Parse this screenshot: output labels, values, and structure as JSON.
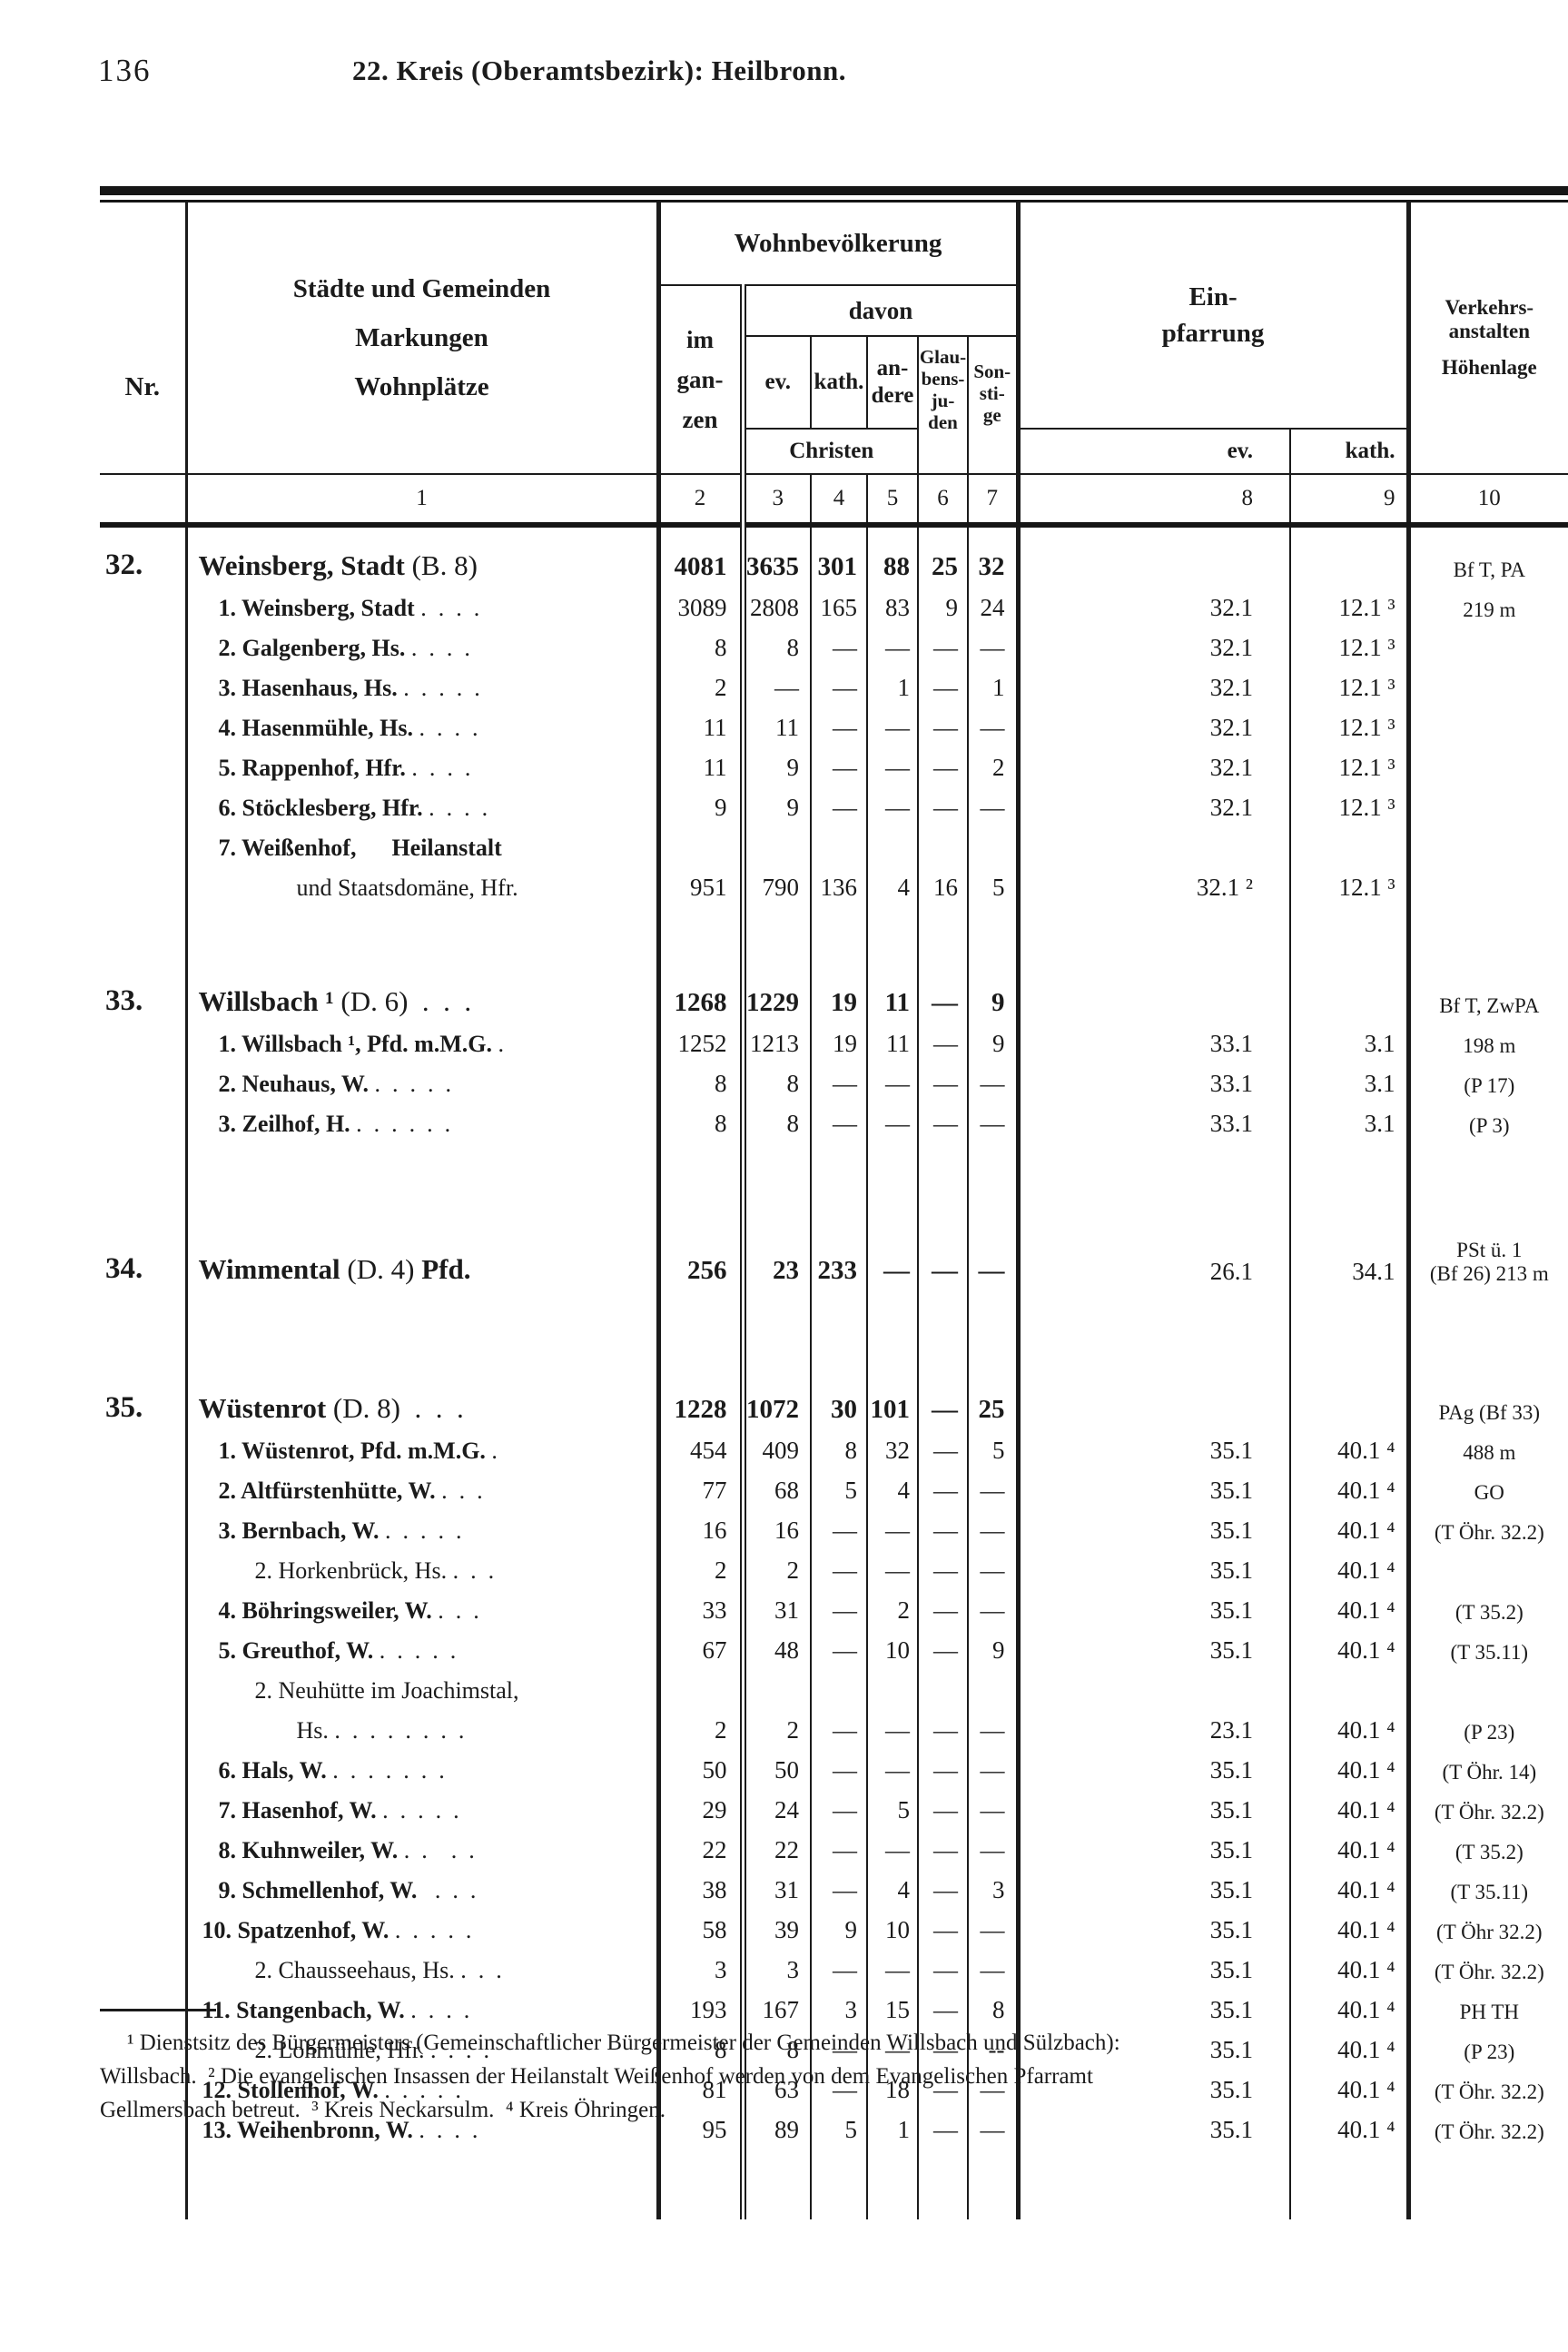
{
  "page": {
    "number": "136",
    "title": "22. Kreis (Oberamtsbezirk): Heilbronn."
  },
  "table": {
    "headers": {
      "nr": "Nr.",
      "col1": "Städte und Gemeinden\nMarkungen\nWohnplätze",
      "wohnbev": "Wohnbevölkerung",
      "davon": "davon",
      "im": "im\ngan-\nzen",
      "ev": "ev.",
      "kath": "kath.",
      "andere": "an-\ndere",
      "glaubensjuden": "Glau-\nbens-\nju-\nden",
      "sonstige": "Son-\nsti-\nge",
      "christen": "Christen",
      "einpfarrung": "Ein-\npfarrung",
      "einpf_ev": "ev.",
      "einpf_kath": "kath.",
      "verkehr1": "Verkehrs-\nanstalten",
      "verkehr2": "Höhenlage",
      "nums": [
        "",
        "1",
        "2",
        "3",
        "4",
        "5",
        "6",
        "7",
        "8",
        "9",
        "10"
      ]
    },
    "rows": [
      {
        "s": "m",
        "nr": "32.",
        "f1": "Weinsberg, Stadt",
        "a1": " (B. 8)",
        "v": [
          "4081",
          "3635",
          "301",
          "88",
          "25",
          "32"
        ],
        "pe": "",
        "pk": "",
        "vk": "Bf T, PA"
      },
      {
        "s": "s1",
        "f1": "1. Weinsberg, Stadt",
        "a1": " .  .  .  .",
        "v": [
          "3089",
          "2808",
          "165",
          "83",
          "9",
          "24"
        ],
        "pe": "32.1",
        "pk": "12.1 ³",
        "vk": "219 m"
      },
      {
        "s": "s1",
        "f1": "2. Galgenberg, Hs.",
        "a1": " .  .  .  .",
        "v": [
          "8",
          "8",
          "—",
          "—",
          "—",
          "—"
        ],
        "pe": "32.1",
        "pk": "12.1 ³",
        "vk": ""
      },
      {
        "s": "s1",
        "f1": "3. Hasenhaus, Hs.",
        "a1": " .  .  .  .  .",
        "v": [
          "2",
          "—",
          "—",
          "1",
          "—",
          "1"
        ],
        "pe": "32.1",
        "pk": "12.1 ³",
        "vk": ""
      },
      {
        "s": "s1",
        "f1": "4. Hasenmühle, Hs.",
        "a1": " .  .  .  .",
        "v": [
          "11",
          "11",
          "—",
          "—",
          "—",
          "—"
        ],
        "pe": "32.1",
        "pk": "12.1 ³",
        "vk": ""
      },
      {
        "s": "s1",
        "f1": "5. Rappenhof, Hfr.",
        "a1": " .  .  .  .",
        "v": [
          "11",
          "9",
          "—",
          "—",
          "—",
          "2"
        ],
        "pe": "32.1",
        "pk": "12.1 ³",
        "vk": ""
      },
      {
        "s": "s1",
        "f1": "6. Stöcklesberg, Hfr.",
        "a1": " .  .  .  .",
        "v": [
          "9",
          "9",
          "—",
          "—",
          "—",
          "—"
        ],
        "pe": "32.1",
        "pk": "12.1 ³",
        "vk": ""
      },
      {
        "s": "s1",
        "f1": "7. Weißenhof,",
        "a1": "      ",
        "f2": "Heilanstalt",
        "v": [
          "",
          "",
          "",
          "",
          "",
          ""
        ],
        "pe": "",
        "pk": "",
        "vk": ""
      },
      {
        "s": "c",
        "f1": "und Staatsdomäne, Hfr.",
        "v": [
          "951",
          "790",
          "136",
          "4",
          "16",
          "5"
        ],
        "pe": "32.1 ²",
        "pk": "12.1 ³",
        "vk": ""
      },
      {
        "s": "g60"
      },
      {
        "s": "m",
        "nr": "33.",
        "f1": "Willsbach ¹",
        "a1": " (D. 6)  .  .  .",
        "v": [
          "1268",
          "1229",
          "19",
          "11",
          "—",
          "9"
        ],
        "pe": "",
        "pk": "",
        "vk": "Bf T, ZwPA"
      },
      {
        "s": "s1",
        "f1": "1. Willsbach ¹, Pfd. m.M.G.",
        "a1": " .",
        "v": [
          "1252",
          "1213",
          "19",
          "11",
          "—",
          "9"
        ],
        "pe": "33.1",
        "pk": "3.1",
        "vk": "198 m"
      },
      {
        "s": "s1",
        "f1": "2. Neuhaus, W.",
        "a1": " .  .  .  .  .",
        "v": [
          "8",
          "8",
          "—",
          "—",
          "—",
          "—"
        ],
        "pe": "33.1",
        "pk": "3.1",
        "vk": "(P 17)"
      },
      {
        "s": "s1",
        "f1": "3. Zeilhof, H.",
        "a1": " .  .  .  .  .  .",
        "v": [
          "8",
          "8",
          "—",
          "—",
          "—",
          "—"
        ],
        "pe": "33.1",
        "pk": "3.1",
        "vk": "(P 3)"
      },
      {
        "s": "g95"
      },
      {
        "s": "m",
        "nr": "34.",
        "f1": "Wimmental",
        "a1": " (D. 4) ",
        "f2": "Pfd.",
        "v": [
          "256",
          "23",
          "233",
          "—",
          "—",
          "—"
        ],
        "pe": "26.1",
        "pk": "34.1",
        "vk": "PSt ü. 1\n(Bf 26) 213 m"
      },
      {
        "s": "g85"
      },
      {
        "s": "m",
        "nr": "35.",
        "f1": "Wüstenrot",
        "a1": " (D. 8)  .  .  .",
        "v": [
          "1228",
          "1072",
          "30",
          "101",
          "—",
          "25"
        ],
        "pe": "",
        "pk": "",
        "vk": "PAg (Bf 33)"
      },
      {
        "s": "s1",
        "f1": "1. Wüstenrot, Pfd. m.M.G.",
        "a1": " .",
        "v": [
          "454",
          "409",
          "8",
          "32",
          "—",
          "5"
        ],
        "pe": "35.1",
        "pk": "40.1 ⁴",
        "vk": "488 m"
      },
      {
        "s": "s1",
        "f1": "2. Altfürstenhütte, W.",
        "a1": " .  .  .",
        "v": [
          "77",
          "68",
          "5",
          "4",
          "—",
          "—"
        ],
        "pe": "35.1",
        "pk": "40.1 ⁴",
        "vk": "GO"
      },
      {
        "s": "s1",
        "f1": "3. Bernbach, W.",
        "a1": " .  .  .  .  .",
        "v": [
          "16",
          "16",
          "—",
          "—",
          "—",
          "—"
        ],
        "pe": "35.1",
        "pk": "40.1 ⁴",
        "vk": "(T Öhr. 32.2)"
      },
      {
        "s": "n",
        "f1": "2. Horkenbrück, Hs.",
        "a1": " .  .  .",
        "v": [
          "2",
          "2",
          "—",
          "—",
          "—",
          "—"
        ],
        "pe": "35.1",
        "pk": "40.1 ⁴",
        "vk": ""
      },
      {
        "s": "s1",
        "f1": "4. Böhringsweiler, W.",
        "a1": " .  .  .",
        "v": [
          "33",
          "31",
          "—",
          "2",
          "—",
          "—"
        ],
        "pe": "35.1",
        "pk": "40.1 ⁴",
        "vk": "(T 35.2)"
      },
      {
        "s": "s1",
        "f1": "5. Greuthof, W.",
        "a1": " .  .  .  .  .",
        "v": [
          "67",
          "48",
          "—",
          "10",
          "—",
          "9"
        ],
        "pe": "35.1",
        "pk": "40.1 ⁴",
        "vk": "(T 35.11)"
      },
      {
        "s": "n",
        "f1": "2. Neuhütte im Joachimstal,",
        "v": [
          "",
          "",
          "",
          "",
          "",
          ""
        ],
        "pe": "",
        "pk": "",
        "vk": ""
      },
      {
        "s": "c",
        "f1": "Hs.",
        "a1": " .  .  .  .  .  .  .  .",
        "v": [
          "2",
          "2",
          "—",
          "—",
          "—",
          "—"
        ],
        "pe": "23.1",
        "pk": "40.1 ⁴",
        "vk": "(P 23)"
      },
      {
        "s": "s1",
        "f1": "6. Hals, W.",
        "a1": " .  .  .  .  .  .  .",
        "v": [
          "50",
          "50",
          "—",
          "—",
          "—",
          "—"
        ],
        "pe": "35.1",
        "pk": "40.1 ⁴",
        "vk": "(T Öhr. 14)"
      },
      {
        "s": "s1",
        "f1": "7. Hasenhof, W.",
        "a1": " .  .  .  .  .",
        "v": [
          "29",
          "24",
          "—",
          "5",
          "—",
          "—"
        ],
        "pe": "35.1",
        "pk": "40.1 ⁴",
        "vk": "(T Öhr. 32.2)"
      },
      {
        "s": "s1",
        "f1": "8. Kuhnweiler, W.",
        "a1": " .  .    .  .",
        "v": [
          "22",
          "22",
          "—",
          "—",
          "—",
          "—"
        ],
        "pe": "35.1",
        "pk": "40.1 ⁴",
        "vk": "(T 35.2)"
      },
      {
        "s": "s1",
        "f1": "9. Schmellenhof, W.",
        "a1": "   .  .  .",
        "v": [
          "38",
          "31",
          "—",
          "4",
          "—",
          "3"
        ],
        "pe": "35.1",
        "pk": "40.1 ⁴",
        "vk": "(T 35.11)"
      },
      {
        "s": "s1w",
        "f1": "10. Spatzenhof, W.",
        "a1": " .  .  .  .  .",
        "v": [
          "58",
          "39",
          "9",
          "10",
          "—",
          "—"
        ],
        "pe": "35.1",
        "pk": "40.1 ⁴",
        "vk": "(T Öhr 32.2)"
      },
      {
        "s": "n",
        "f1": "2. Chausseehaus, Hs.",
        "a1": " .  .  .",
        "v": [
          "3",
          "3",
          "—",
          "—",
          "—",
          "—"
        ],
        "pe": "35.1",
        "pk": "40.1 ⁴",
        "vk": "(T Öhr. 32.2)"
      },
      {
        "s": "s1w",
        "f1": "11. Stangenbach, W.",
        "a1": " .  .  .  .",
        "v": [
          "193",
          "167",
          "3",
          "15",
          "—",
          "8"
        ],
        "pe": "35.1",
        "pk": "40.1 ⁴",
        "vk": "PH TH"
      },
      {
        "s": "n",
        "f1": "2. Lohmühle, Hfr.",
        "a1": " .  .  .  .",
        "v": [
          "8",
          "8",
          "—",
          "—",
          "—",
          "--"
        ],
        "pe": "35.1",
        "pk": "40.1 ⁴",
        "vk": "(P 23)"
      },
      {
        "s": "s1w",
        "f1": "12. Stollenhof, W.",
        "a1": " .  .  .  .  .",
        "v": [
          "81",
          "63",
          "—",
          "18",
          "—",
          "—"
        ],
        "pe": "35.1",
        "pk": "40.1 ⁴",
        "vk": "(T Öhr. 32.2)"
      },
      {
        "s": "s1w",
        "f1": "13. Weihenbronn, W.",
        "a1": " .  .  .  .",
        "v": [
          "95",
          "89",
          "5",
          "1",
          "—",
          "—"
        ],
        "pe": "35.1",
        "pk": "40.1 ⁴",
        "vk": "(T Öhr. 32.2)"
      },
      {
        "s": "g75"
      }
    ]
  },
  "footnotes": {
    "lines": [
      "¹ Dienstsitz des Bürgermeisters (Gemeinschaftlicher Bürgermeister der Gemeinden Willsbach und Sülzbach):",
      "Willsbach.  ² Die evangelischen Insassen der Heilanstalt Weißenhof werden von dem Evangelischen Pfarramt",
      "Gellmersbach betreut.  ³ Kreis Neckarsulm.  ⁴ Kreis Öhringen."
    ]
  }
}
